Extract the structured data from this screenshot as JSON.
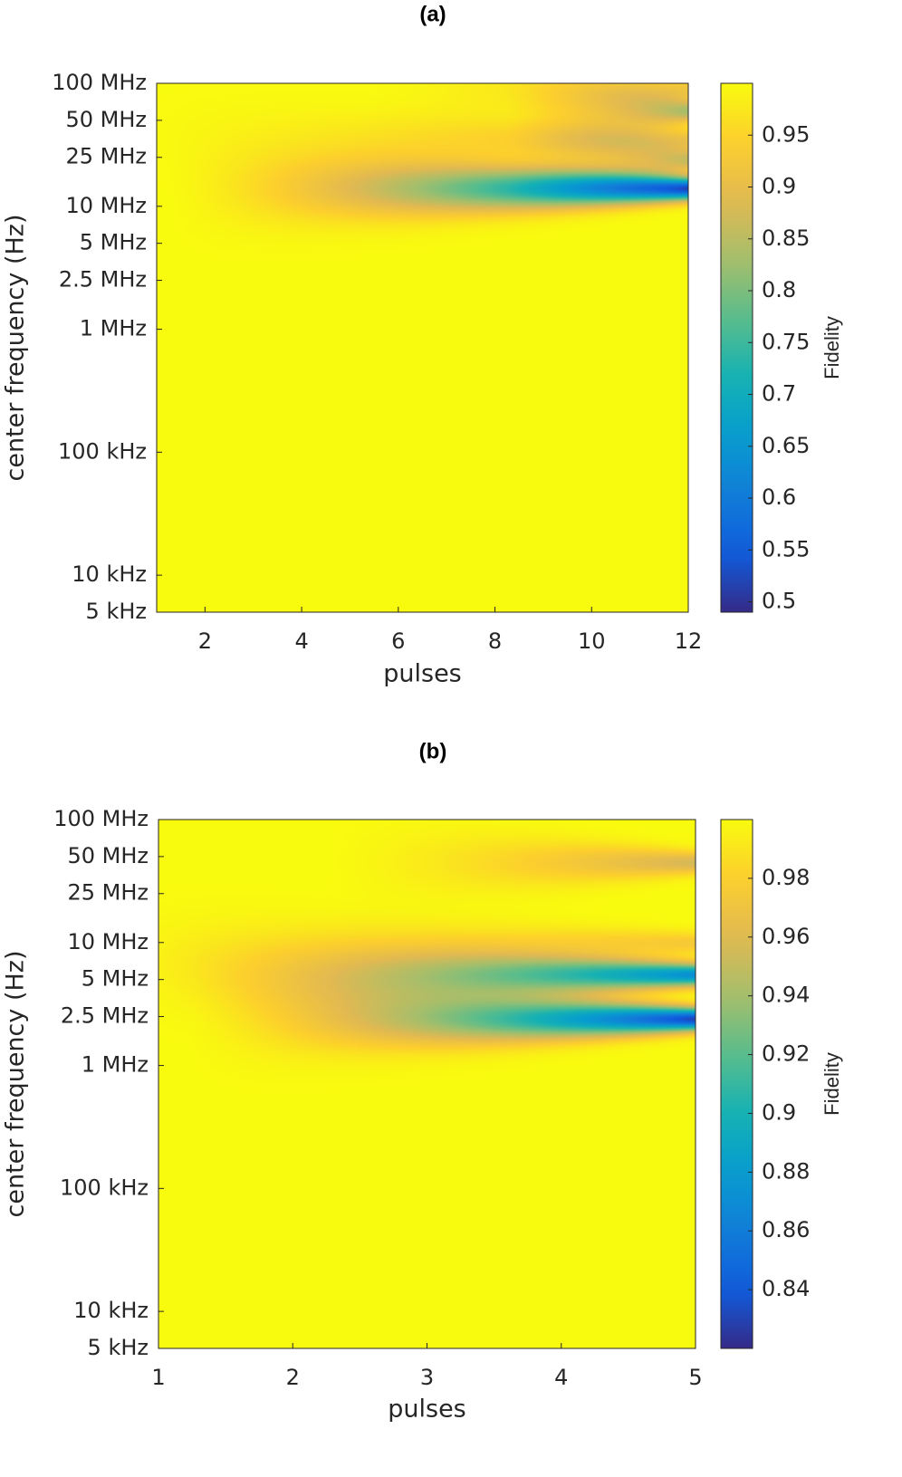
{
  "chart_data": [
    {
      "type": "heatmap",
      "title": "(a)",
      "xlabel": "pulses",
      "ylabel": "center frequency (Hz)",
      "colorbar_label": "Fidelity",
      "colormap": "parula",
      "x_range": [
        1,
        12
      ],
      "x_ticks": [
        2,
        4,
        6,
        8,
        10,
        12
      ],
      "y_scale": "log",
      "y_range_hz": [
        5000,
        100000000
      ],
      "y_ticks": [
        {
          "value": 5000,
          "label": "5 kHz"
        },
        {
          "value": 10000,
          "label": "10 kHz"
        },
        {
          "value": 100000,
          "label": "100 kHz"
        },
        {
          "value": 1000000,
          "label": "1 MHz"
        },
        {
          "value": 2500000,
          "label": "2.5 MHz"
        },
        {
          "value": 5000000,
          "label": "5 MHz"
        },
        {
          "value": 10000000,
          "label": "10 MHz"
        },
        {
          "value": 25000000,
          "label": "25 MHz"
        },
        {
          "value": 50000000,
          "label": "50 MHz"
        },
        {
          "value": 100000000,
          "label": "100 MHz"
        }
      ],
      "color_range": [
        0.49,
        1.0
      ],
      "colorbar_ticks": [
        0.5,
        0.55,
        0.6,
        0.65,
        0.7,
        0.75,
        0.8,
        0.85,
        0.9,
        0.95
      ],
      "features": [
        {
          "center_hz": 14000000,
          "min_fidelity": 0.52,
          "onset_pulses": 2,
          "note": "narrow dip deepening with pulses"
        },
        {
          "center_hz": 35000000,
          "min_fidelity": 0.91,
          "onset_pulses": 1
        },
        {
          "center_hz": 60000000,
          "min_fidelity": 0.83,
          "onset_pulses": 9
        },
        {
          "center_hz": 24000000,
          "min_fidelity": 0.86,
          "onset_pulses": 9
        },
        {
          "center_hz": 90000000,
          "min_fidelity": 0.92,
          "onset_pulses": 6
        }
      ]
    },
    {
      "type": "heatmap",
      "title": "(b)",
      "xlabel": "pulses",
      "ylabel": "center frequency (Hz)",
      "colorbar_label": "Fidelity",
      "colormap": "parula",
      "x_range": [
        1,
        5
      ],
      "x_ticks": [
        1,
        2,
        3,
        4,
        5
      ],
      "y_scale": "log",
      "y_range_hz": [
        5000,
        100000000
      ],
      "y_ticks": [
        {
          "value": 5000,
          "label": "5 kHz"
        },
        {
          "value": 10000,
          "label": "10 kHz"
        },
        {
          "value": 100000,
          "label": "100 kHz"
        },
        {
          "value": 1000000,
          "label": "1 MHz"
        },
        {
          "value": 2500000,
          "label": "2.5 MHz"
        },
        {
          "value": 5000000,
          "label": "5 MHz"
        },
        {
          "value": 10000000,
          "label": "10 MHz"
        },
        {
          "value": 25000000,
          "label": "25 MHz"
        },
        {
          "value": 50000000,
          "label": "50 MHz"
        },
        {
          "value": 100000000,
          "label": "100 MHz"
        }
      ],
      "color_range": [
        0.82,
        1.0
      ],
      "colorbar_ticks": [
        0.84,
        0.86,
        0.88,
        0.9,
        0.92,
        0.94,
        0.96,
        0.98
      ],
      "features": [
        {
          "center_hz": 5500000,
          "min_fidelity": 0.87,
          "onset_pulses": 1.5
        },
        {
          "center_hz": 2400000,
          "min_fidelity": 0.83,
          "onset_pulses": 2
        },
        {
          "center_hz": 45000000,
          "min_fidelity": 0.955,
          "onset_pulses": 3
        },
        {
          "center_hz": 10000000,
          "min_fidelity": 0.975,
          "onset_pulses": 1
        }
      ]
    }
  ]
}
